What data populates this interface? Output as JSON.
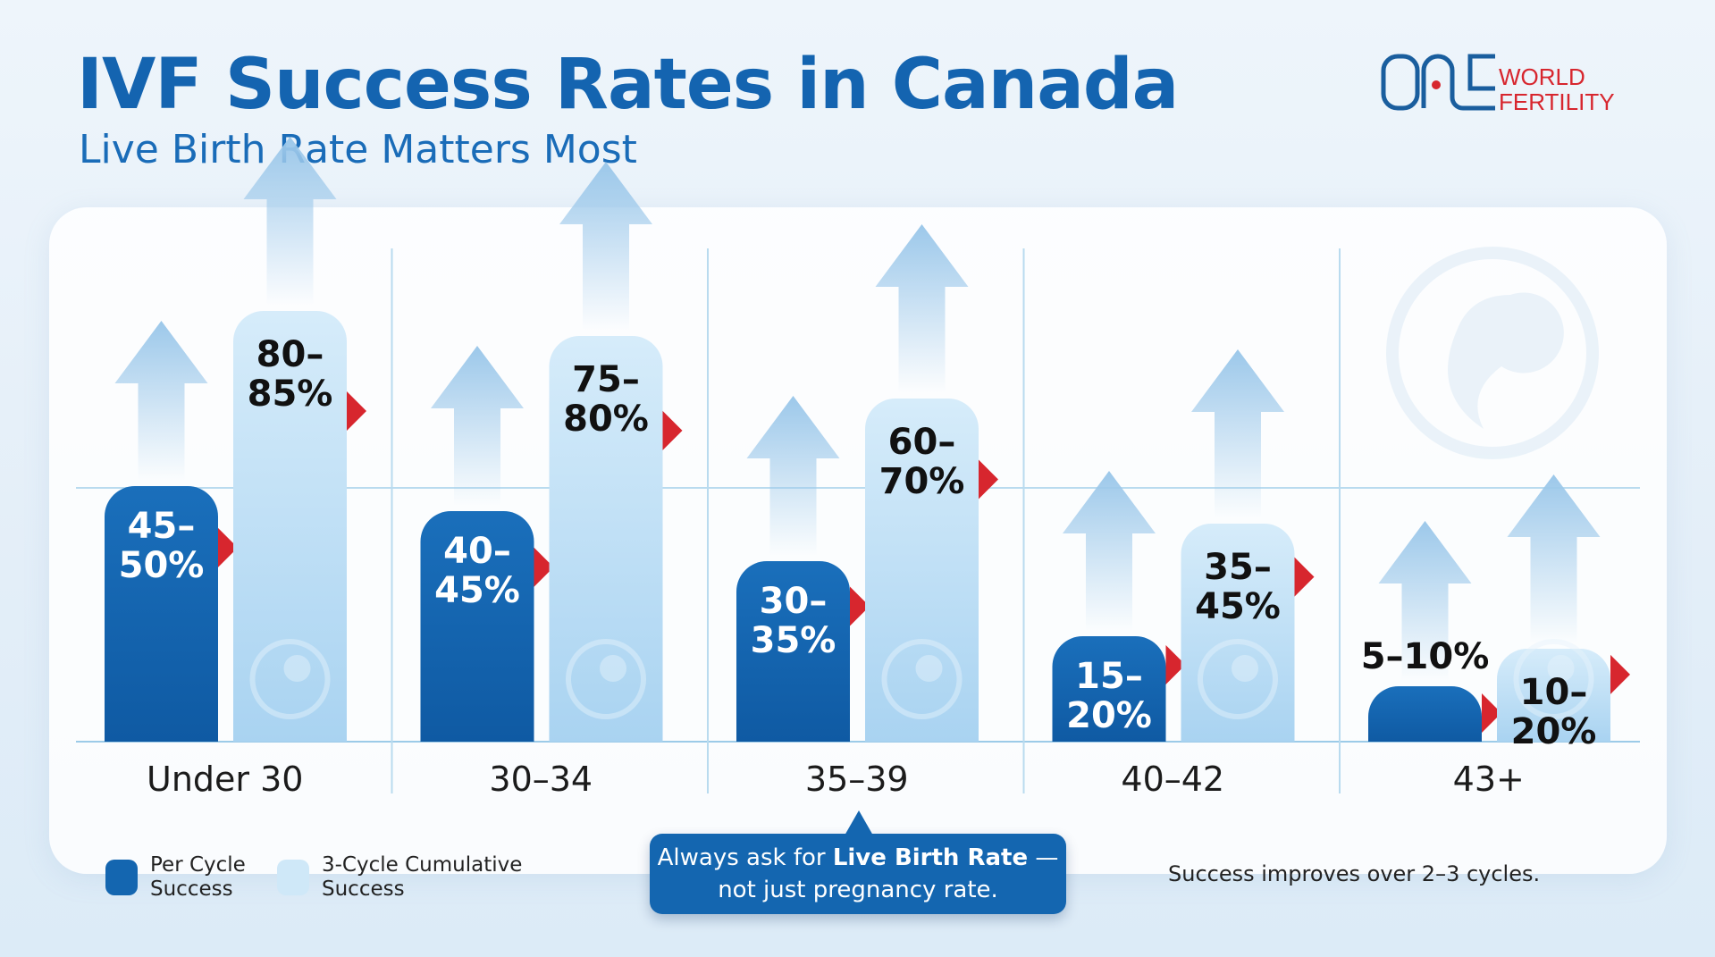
{
  "header": {
    "title": "IVF Success Rates in Canada",
    "subtitle": "Live Birth Rate Matters Most"
  },
  "logo": {
    "text_top": "WORLD",
    "text_bottom": "FERTILITY",
    "mark": "ONE"
  },
  "chart_data": {
    "type": "bar",
    "categories": [
      "Under 30",
      "30–34",
      "35–39",
      "40–42",
      "43+"
    ],
    "series": [
      {
        "name": "Per Cycle Success",
        "color": "#1466b0",
        "values": [
          [
            45,
            50
          ],
          [
            40,
            45
          ],
          [
            30,
            35
          ],
          [
            15,
            20
          ],
          [
            5,
            10
          ]
        ],
        "labels": [
          "45–\n50%",
          "40–\n45%",
          "30–\n35%",
          "15–\n20%",
          "5–10%"
        ]
      },
      {
        "name": "3-Cycle Cumulative Success",
        "color": "#bfe0f5",
        "values": [
          [
            80,
            85
          ],
          [
            75,
            80
          ],
          [
            60,
            70
          ],
          [
            35,
            45
          ],
          [
            10,
            20
          ]
        ],
        "labels": [
          "80–\n85%",
          "75–\n80%",
          "60–\n70%",
          "35–\n45%",
          "10–\n20%"
        ]
      }
    ],
    "unit": "%",
    "grid": true,
    "legend": "bottom-left"
  },
  "legend": [
    {
      "label": "Per Cycle\nSuccess",
      "color": "#1466b0"
    },
    {
      "label": "3-Cycle Cumulative\nSuccess",
      "color": "#bfe0f5"
    }
  ],
  "callout": {
    "pre": "Always ask for ",
    "bold": "Live Birth Rate",
    "post": " —",
    "line2": "not just pregnancy rate."
  },
  "note": "Success improves over 2–3 cycles.",
  "colors": {
    "accent": "#1466b0",
    "light": "#bfe0f5",
    "marker": "#d7262e"
  }
}
